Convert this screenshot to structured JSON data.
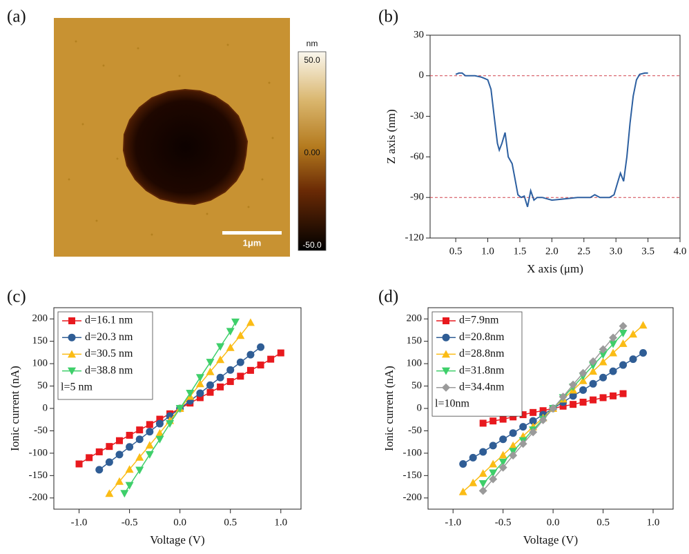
{
  "chart_data": [
    {
      "type": "image",
      "label": "(a)",
      "colorbar_unit": "nm",
      "clim": [
        -50,
        50
      ],
      "colorbar_ticks": [
        {
          "value": 50,
          "label": "50.0"
        },
        {
          "value": 0,
          "label": "0.00"
        },
        {
          "value": -50,
          "label": "-50.0"
        }
      ],
      "scale_bar": "1μm"
    },
    {
      "type": "line",
      "label": "(b)",
      "x_label": "X axis (μm)",
      "y_label": "Z axis (nm)",
      "xlim": [
        0.1,
        4.0
      ],
      "ylim": [
        -120,
        30
      ],
      "xticks": [
        0.5,
        {
          "value": 1,
          "label": "1.0"
        },
        1.5,
        {
          "value": 2,
          "label": "2.0"
        },
        2.5,
        {
          "value": 3,
          "label": "3.0"
        },
        3.5,
        {
          "value": 4,
          "label": "4.0"
        }
      ],
      "yticks": [
        -120,
        -90,
        -60,
        -30,
        0,
        30
      ],
      "reference_lines": [
        0,
        -90
      ],
      "reference_color": "#d0404a",
      "series": [
        {
          "color": "#2c5fa0",
          "x": [
            0.5,
            0.55,
            0.6,
            0.65,
            0.8,
            0.9,
            0.95,
            1.0,
            1.05,
            1.1,
            1.15,
            1.18,
            1.22,
            1.27,
            1.32,
            1.38,
            1.42,
            1.47,
            1.52,
            1.57,
            1.62,
            1.67,
            1.72,
            1.77,
            1.85,
            2.0,
            2.2,
            2.4,
            2.6,
            2.67,
            2.75,
            2.9,
            2.97,
            3.02,
            3.07,
            3.12,
            3.17,
            3.22,
            3.27,
            3.32,
            3.37,
            3.45,
            3.5
          ],
          "values": [
            1,
            2,
            2,
            0,
            0,
            -1,
            -2,
            -3,
            -10,
            -30,
            -50,
            -55,
            -50,
            -42,
            -60,
            -65,
            -75,
            -88,
            -90,
            -89,
            -97,
            -85,
            -92,
            -90,
            -90,
            -92,
            -91,
            -90,
            -90,
            -88,
            -90,
            -90,
            -88,
            -80,
            -72,
            -78,
            -60,
            -35,
            -15,
            -3,
            1,
            2,
            2
          ]
        }
      ]
    },
    {
      "type": "line",
      "label": "(c)",
      "x_label": "Voltage (V)",
      "y_label": "Ionic current (nA)",
      "xlim": [
        -1.25,
        1.2
      ],
      "ylim": [
        -225,
        225
      ],
      "xticks": [
        {
          "value": -1,
          "label": "-1.0"
        },
        -0.5,
        {
          "value": 0,
          "label": "0.0"
        },
        0.5,
        {
          "value": 1,
          "label": "1.0"
        }
      ],
      "yticks": [
        -200,
        -150,
        -100,
        -50,
        0,
        50,
        100,
        150,
        200
      ],
      "legend": "upper left",
      "annotation": "l=5 nm",
      "series": [
        {
          "name": "d=16.1 nm",
          "color": "#e8191e",
          "marker": "square",
          "x": [
            -1.0,
            -0.9,
            -0.8,
            -0.7,
            -0.6,
            -0.5,
            -0.4,
            -0.3,
            -0.2,
            -0.1,
            0,
            0.1,
            0.2,
            0.3,
            0.4,
            0.5,
            0.6,
            0.7,
            0.8,
            0.9,
            1.0
          ],
          "values": [
            -124,
            -110,
            -97,
            -85,
            -72,
            -60,
            -48,
            -36,
            -24,
            -12,
            0,
            12,
            24,
            36,
            48,
            60,
            72,
            85,
            97,
            110,
            124
          ]
        },
        {
          "name": "d=20.3 nm",
          "color": "#2f5d95",
          "marker": "circle",
          "x": [
            -0.8,
            -0.7,
            -0.6,
            -0.5,
            -0.4,
            -0.3,
            -0.2,
            -0.1,
            0,
            0.1,
            0.2,
            0.3,
            0.4,
            0.5,
            0.6,
            0.7,
            0.8
          ],
          "values": [
            -137,
            -120,
            -103,
            -86,
            -69,
            -52,
            -34,
            -17,
            0,
            17,
            34,
            52,
            69,
            86,
            103,
            120,
            137
          ]
        },
        {
          "name": "d=30.5 nm",
          "color": "#fbbc15",
          "marker": "triangle-up",
          "x": [
            -0.7,
            -0.6,
            -0.5,
            -0.4,
            -0.3,
            -0.2,
            -0.1,
            0,
            0.1,
            0.2,
            0.3,
            0.4,
            0.5,
            0.6,
            0.7
          ],
          "values": [
            -190,
            -163,
            -136,
            -109,
            -82,
            -55,
            -27,
            0,
            27,
            55,
            82,
            109,
            136,
            163,
            192
          ]
        },
        {
          "name": "d=38.8 nm",
          "color": "#3ecf6a",
          "marker": "triangle-down",
          "x": [
            -0.55,
            -0.5,
            -0.4,
            -0.3,
            -0.2,
            -0.1,
            0,
            0.1,
            0.2,
            0.3,
            0.4,
            0.5,
            0.55
          ],
          "values": [
            -190,
            -172,
            -138,
            -103,
            -69,
            -34,
            0,
            34,
            69,
            103,
            138,
            172,
            193
          ]
        }
      ]
    },
    {
      "type": "line",
      "label": "(d)",
      "x_label": "Voltage (V)",
      "y_label": "Ionic current (nA)",
      "xlim": [
        -1.25,
        1.2
      ],
      "ylim": [
        -225,
        225
      ],
      "xticks": [
        {
          "value": -1,
          "label": "-1.0"
        },
        -0.5,
        {
          "value": 0,
          "label": "0.0"
        },
        0.5,
        {
          "value": 1,
          "label": "1.0"
        }
      ],
      "yticks": [
        -200,
        -150,
        -100,
        -50,
        0,
        50,
        100,
        150,
        200
      ],
      "legend": "upper left",
      "annotation": "l=10nm",
      "series": [
        {
          "name": "d=7.9nm",
          "color": "#e8191e",
          "marker": "square",
          "x": [
            -0.7,
            -0.6,
            -0.5,
            -0.4,
            -0.3,
            -0.2,
            -0.1,
            0,
            0.1,
            0.2,
            0.3,
            0.4,
            0.5,
            0.6,
            0.7
          ],
          "values": [
            -33,
            -28,
            -24,
            -19,
            -14,
            -9,
            -5,
            0,
            5,
            9,
            14,
            19,
            24,
            28,
            33
          ]
        },
        {
          "name": "d=20.8nm",
          "color": "#2f5d95",
          "marker": "circle",
          "x": [
            -0.9,
            -0.8,
            -0.7,
            -0.6,
            -0.5,
            -0.4,
            -0.3,
            -0.2,
            -0.1,
            0,
            0.1,
            0.2,
            0.3,
            0.4,
            0.5,
            0.6,
            0.7,
            0.8,
            0.9
          ],
          "values": [
            -124,
            -110,
            -97,
            -83,
            -69,
            -55,
            -41,
            -28,
            -14,
            0,
            14,
            28,
            41,
            55,
            69,
            83,
            97,
            110,
            124
          ]
        },
        {
          "name": "d=28.8nm",
          "color": "#fbbc15",
          "marker": "triangle-up",
          "x": [
            -0.9,
            -0.8,
            -0.7,
            -0.6,
            -0.5,
            -0.4,
            -0.3,
            -0.2,
            -0.1,
            0,
            0.1,
            0.2,
            0.3,
            0.4,
            0.5,
            0.6,
            0.7,
            0.8,
            0.9
          ],
          "values": [
            -186,
            -166,
            -145,
            -124,
            -104,
            -83,
            -62,
            -41,
            -21,
            0,
            21,
            41,
            62,
            83,
            104,
            124,
            145,
            166,
            186
          ]
        },
        {
          "name": "d=31.8nm",
          "color": "#3ecf6a",
          "marker": "triangle-down",
          "x": [
            -0.7,
            -0.6,
            -0.5,
            -0.4,
            -0.3,
            -0.2,
            -0.1,
            0,
            0.1,
            0.2,
            0.3,
            0.4,
            0.5,
            0.6,
            0.7
          ],
          "values": [
            -168,
            -144,
            -120,
            -96,
            -72,
            -48,
            -24,
            0,
            24,
            48,
            72,
            96,
            120,
            144,
            168
          ]
        },
        {
          "name": "d=34.4nm",
          "color": "#9a9a9a",
          "marker": "diamond",
          "x": [
            -0.7,
            -0.6,
            -0.5,
            -0.4,
            -0.3,
            -0.2,
            -0.1,
            0,
            0.1,
            0.2,
            0.3,
            0.4,
            0.5,
            0.6,
            0.7
          ],
          "values": [
            -184,
            -158,
            -132,
            -105,
            -79,
            -53,
            -26,
            0,
            26,
            53,
            79,
            105,
            132,
            158,
            184
          ]
        }
      ]
    }
  ]
}
